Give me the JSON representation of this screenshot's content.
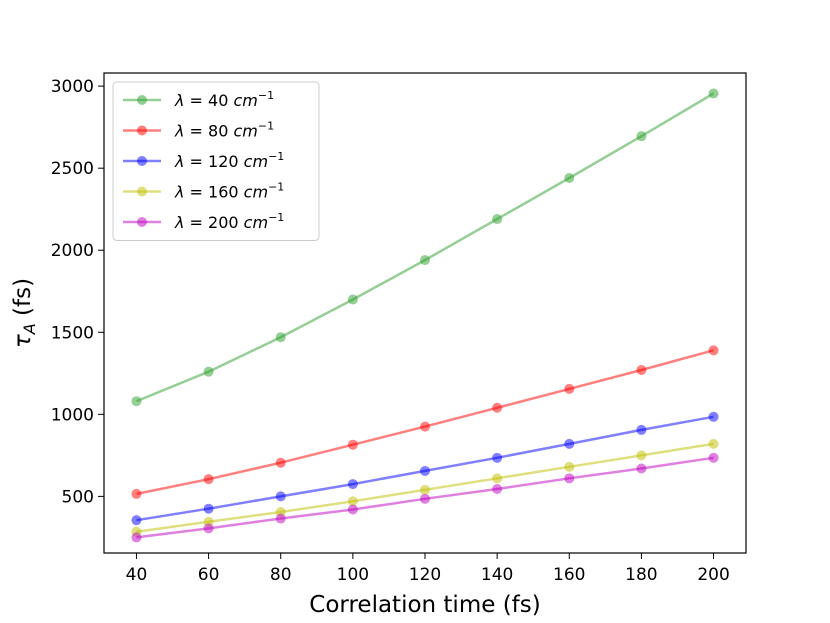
{
  "chart_data": {
    "type": "line",
    "title": "",
    "xlabel": "Correlation time (fs)",
    "ylabel_main": "τ",
    "ylabel_sub": "A",
    "ylabel_unit": " (fs)",
    "x": [
      40,
      60,
      80,
      100,
      120,
      140,
      160,
      180,
      200
    ],
    "xlim": [
      31,
      209
    ],
    "ylim": [
      155,
      3080
    ],
    "xticks": [
      40,
      60,
      80,
      100,
      120,
      140,
      160,
      180,
      200
    ],
    "yticks": [
      500,
      1000,
      1500,
      2000,
      2500,
      3000
    ],
    "legend_position": "top-left",
    "series": [
      {
        "name": "λ = 40 cm⁻¹",
        "label_value": "40",
        "color": "#2ca02c",
        "values": [
          1080,
          1260,
          1470,
          1700,
          1940,
          2190,
          2440,
          2695,
          2955
        ]
      },
      {
        "name": "λ = 80 cm⁻¹",
        "label_value": "80",
        "color": "#ff0000",
        "values": [
          515,
          605,
          705,
          815,
          925,
          1040,
          1155,
          1270,
          1390
        ]
      },
      {
        "name": "λ = 120 cm⁻¹",
        "label_value": "120",
        "color": "#0000ff",
        "values": [
          355,
          425,
          500,
          575,
          655,
          735,
          820,
          905,
          985
        ]
      },
      {
        "name": "λ = 160 cm⁻¹",
        "label_value": "160",
        "color": "#bfbf00",
        "values": [
          285,
          345,
          405,
          470,
          540,
          610,
          680,
          750,
          820
        ]
      },
      {
        "name": "λ = 200 cm⁻¹",
        "label_value": "200",
        "color": "#bf00bf",
        "values": [
          250,
          305,
          365,
          420,
          485,
          545,
          610,
          670,
          735
        ]
      }
    ],
    "legend_text": {
      "lambda": "λ",
      "eq": " = ",
      "unit": "cm",
      "exp": "−1"
    }
  }
}
